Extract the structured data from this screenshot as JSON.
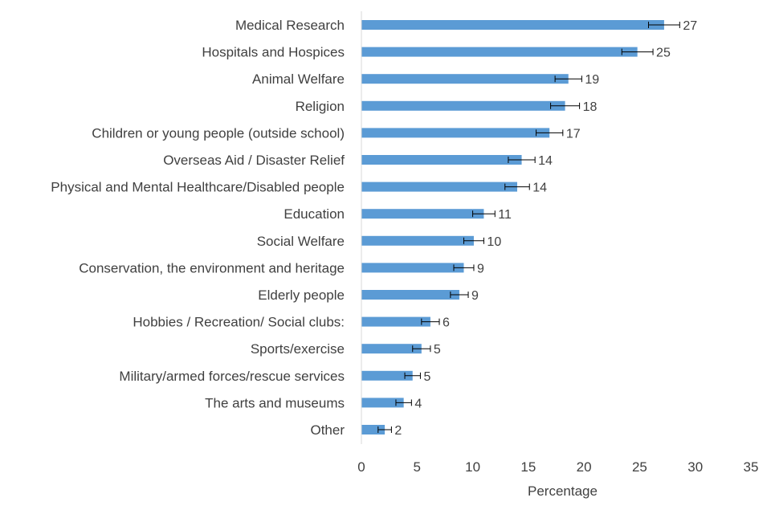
{
  "chart_data": {
    "type": "bar",
    "orientation": "horizontal",
    "title": "",
    "xlabel": "Percentage",
    "ylabel": "",
    "xlim": [
      0,
      35
    ],
    "xticks": [
      0,
      5,
      10,
      15,
      20,
      25,
      30,
      35
    ],
    "grid": false,
    "legend": "none",
    "bar_color": "#5B9BD5",
    "categories": [
      "Medical Research",
      "Hospitals and Hospices",
      "Animal Welfare",
      "Religion",
      "Children or young people (outside school)",
      "Overseas Aid / Disaster Relief",
      "Physical and Mental Healthcare/Disabled people",
      "Education",
      "Social Welfare",
      "Conservation, the environment and heritage",
      "Elderly people",
      "Hobbies / Recreation/ Social clubs:",
      "Sports/exercise",
      "Military/armed forces/rescue services",
      "The arts and museums",
      "Other"
    ],
    "values": [
      27.2,
      24.8,
      18.6,
      18.3,
      16.9,
      14.4,
      14.0,
      11.0,
      10.1,
      9.2,
      8.8,
      6.2,
      5.4,
      4.6,
      3.8,
      2.1
    ],
    "value_labels": [
      "27",
      "25",
      "19",
      "18",
      "17",
      "14",
      "14",
      "11",
      "10",
      "9",
      "9",
      "6",
      "5",
      "5",
      "4",
      "2"
    ],
    "error": [
      1.4,
      1.4,
      1.2,
      1.3,
      1.2,
      1.2,
      1.1,
      1.0,
      0.9,
      0.9,
      0.8,
      0.8,
      0.8,
      0.7,
      0.7,
      0.6
    ]
  }
}
